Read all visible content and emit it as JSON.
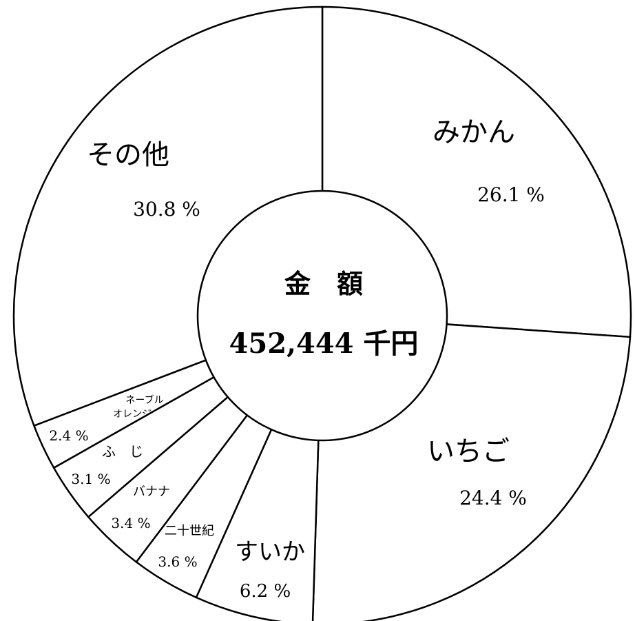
{
  "chart_data": {
    "type": "pie",
    "title": "",
    "center_label": "金　額",
    "center_value": "452,444 千円",
    "slices": [
      {
        "label": "みかん",
        "value": 26.1,
        "percent_label": "26.1 %"
      },
      {
        "label": "いちご",
        "value": 24.4,
        "percent_label": "24.4 %"
      },
      {
        "label": "すいか",
        "value": 6.2,
        "percent_label": "6.2 %"
      },
      {
        "label": "二十世紀",
        "value": 3.6,
        "percent_label": "3.6 %"
      },
      {
        "label": "バナナ",
        "value": 3.4,
        "percent_label": "3.4 %"
      },
      {
        "label": "ふ　じ",
        "value": 3.1,
        "percent_label": "3.1 %"
      },
      {
        "label": "ネーブル\nオレンジ",
        "value": 2.4,
        "percent_label": "2.4 %"
      },
      {
        "label": "その他",
        "value": 30.8,
        "percent_label": "30.8 %"
      }
    ],
    "start_direction": "top",
    "order": "clockwise",
    "colors": {
      "fill": "#ffffff",
      "stroke": "#000000"
    },
    "legend": "none"
  }
}
